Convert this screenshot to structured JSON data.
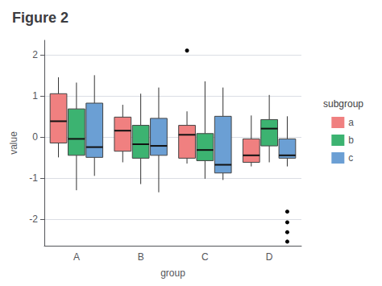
{
  "chart_data": {
    "type": "boxplot",
    "title": "Figure 2",
    "xlabel": "group",
    "ylabel": "value",
    "legend_title": "subgroup",
    "legend": "right",
    "grid": true,
    "categories": [
      "A",
      "B",
      "C",
      "D"
    ],
    "ylim": [
      -2.65,
      2.35
    ],
    "yticks": [
      -2,
      -1,
      0,
      1,
      2
    ],
    "series": [
      {
        "name": "a",
        "color": "#F08080",
        "values": [
          [
            -0.5,
            -0.15,
            0.38,
            1.05,
            1.45
          ],
          [
            -0.62,
            -0.35,
            0.15,
            0.48,
            0.78
          ],
          [
            -0.65,
            -0.52,
            0.05,
            0.28,
            0.62
          ],
          [
            -0.72,
            -0.62,
            -0.45,
            -0.05,
            0.52
          ]
        ],
        "outliers": [
          [],
          [],
          [
            2.1
          ],
          []
        ]
      },
      {
        "name": "b",
        "color": "#3CB371",
        "values": [
          [
            -1.3,
            -0.45,
            -0.05,
            0.68,
            1.32
          ],
          [
            -1.15,
            -0.52,
            -0.18,
            0.28,
            1.05
          ],
          [
            -1.02,
            -0.58,
            -0.32,
            0.08,
            1.35
          ],
          [
            -0.62,
            -0.22,
            0.2,
            0.42,
            1.02
          ]
        ],
        "outliers": [
          [],
          [],
          [],
          []
        ]
      },
      {
        "name": "c",
        "color": "#6B9FD4",
        "values": [
          [
            -0.95,
            -0.5,
            -0.25,
            0.82,
            1.5
          ],
          [
            -1.35,
            -0.45,
            -0.22,
            0.45,
            1.2
          ],
          [
            -1.05,
            -0.88,
            -0.68,
            0.5,
            1.2
          ],
          [
            -0.72,
            -0.52,
            -0.45,
            -0.05,
            0.5
          ]
        ],
        "outliers": [
          [],
          [],
          [],
          [
            -1.82,
            -2.08,
            -2.32,
            -2.55
          ]
        ]
      }
    ]
  }
}
